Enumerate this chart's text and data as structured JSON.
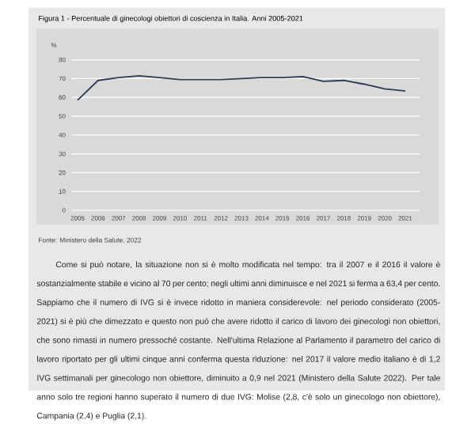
{
  "chart_data": {
    "type": "line",
    "title": "Figura 1 - Percentuale di ginecologi obiettori di coscienza in Italia. Anni 2005-2021",
    "ylabel": "%",
    "categories": [
      "2005",
      "2006",
      "2007",
      "2008",
      "2009",
      "2010",
      "2011",
      "2012",
      "2013",
      "2014",
      "2015",
      "2016",
      "2017",
      "2018",
      "2019",
      "2020",
      "2021"
    ],
    "series": [
      {
        "color": "#2b3a55",
        "values": [
          58.5,
          69,
          70.5,
          71.5,
          70.5,
          69.5,
          69.5,
          69.5,
          70,
          70.5,
          70.5,
          71,
          68.5,
          69,
          67,
          64.5,
          63.4
        ]
      }
    ],
    "ylim": [
      0,
      82
    ],
    "yticks": [
      0,
      10,
      20,
      30,
      40,
      50,
      60,
      70,
      80
    ],
    "grid": "y",
    "marker": "none",
    "line_style": "solid",
    "annotations": [
      "Fonte: Ministero della Salute, 2022",
      "Come si può notare, la situazione non si è molto modificata nel tempo: tra il 2007 e il 2016 il valore è sostanzialmente stabile e vicino al 70 per cento; negli ultimi anni diminuisce e nel 2021 si ferma a 63,4 per cento. Sappiamo che il numero di IVG si è invece ridotto in maniera considerevole: nel periodo considerato (2005-2021) si è più che dimezzato e questo non può che avere ridotto il carico di lavoro dei ginecologi non obiettori, che sono rimasti in numero pressoché costante. Nell'ultima Relazione al Parlamento il parametro del carico di lavoro riportato per gli ultimi cinque anni conferma questa riduzione: nel 2017 il valore medio italiano è di 1,2 IVG settimanali per ginecologo non obiettore, diminuito a 0,9 nel 2021 (Ministero della Salute 2022). Per tale anno solo tre regioni hanno superato il numero di due IVG: Molise (2,8, c'è solo un ginecologo non obiettore), Campania (2,4) e Puglia (2,1)."
    ]
  }
}
